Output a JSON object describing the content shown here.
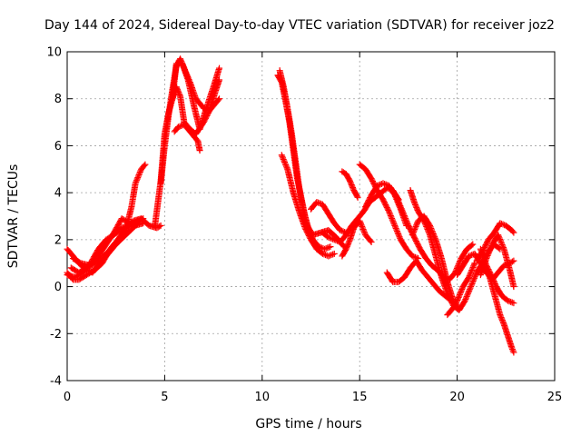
{
  "chart_data": {
    "type": "scatter",
    "title": "Day 144 of 2024, Sidereal Day-to-day VTEC variation (SDTVAR) for receiver joz2",
    "xlabel": "GPS time / hours",
    "ylabel": "SDTVAR / TECUs",
    "xlim": [
      0,
      25
    ],
    "ylim": [
      -4,
      10
    ],
    "x_ticks": [
      "0",
      "5",
      "10",
      "15",
      "20",
      "25"
    ],
    "y_ticks": [
      "-4",
      "-2",
      "0",
      "2",
      "4",
      "6",
      "8",
      "10"
    ],
    "x_tick_values": [
      0,
      5,
      10,
      15,
      20,
      25
    ],
    "y_tick_values": [
      -4,
      -2,
      0,
      2,
      4,
      6,
      8,
      10
    ],
    "grid": true,
    "marker": "+",
    "color": "#ff0000",
    "series": [
      {
        "x": [
          0.0,
          0.3,
          0.6,
          1.0,
          1.3,
          1.6,
          1.9,
          2.2,
          2.5,
          2.8,
          3.0,
          3.3,
          3.5,
          3.8,
          4.0
        ],
        "y": [
          1.6,
          1.3,
          1.0,
          0.7,
          0.6,
          0.9,
          1.2,
          1.5,
          1.8,
          2.1,
          2.4,
          3.4,
          4.4,
          5.0,
          5.2
        ]
      },
      {
        "x": [
          0.0,
          0.3,
          0.6,
          1.0,
          1.4,
          1.8,
          2.2,
          2.6,
          3.0,
          3.4,
          3.8,
          4.2,
          4.6,
          4.8
        ],
        "y": [
          0.6,
          0.3,
          0.3,
          0.5,
          0.7,
          1.0,
          1.6,
          2.0,
          2.5,
          2.8,
          2.9,
          2.6,
          2.5,
          2.6
        ]
      },
      {
        "x": [
          0.0,
          0.4,
          0.8,
          1.2,
          1.6,
          2.0,
          2.4,
          2.8,
          3.2,
          3.6,
          3.9
        ],
        "y": [
          0.5,
          0.4,
          0.6,
          1.0,
          1.6,
          2.0,
          2.2,
          2.5,
          2.6,
          2.8,
          2.9
        ]
      },
      {
        "x": [
          0.2,
          0.6,
          1.0,
          1.5,
          2.0,
          2.5,
          3.0,
          3.5,
          3.9
        ],
        "y": [
          0.8,
          0.6,
          0.8,
          1.0,
          1.4,
          1.8,
          2.2,
          2.6,
          2.7
        ]
      },
      {
        "x": [
          0.3,
          0.7,
          1.2,
          1.6,
          2.0,
          2.4,
          2.8,
          3.2
        ],
        "y": [
          1.2,
          1.0,
          0.9,
          1.3,
          1.8,
          2.3,
          2.9,
          2.7
        ]
      },
      {
        "x": [
          4.8,
          5.0,
          5.2,
          5.4,
          5.6,
          5.8,
          6.0,
          6.3,
          6.6,
          7.0,
          7.3,
          7.6,
          7.8
        ],
        "y": [
          4.4,
          6.0,
          7.3,
          8.4,
          9.4,
          9.7,
          9.3,
          8.7,
          8.0,
          7.6,
          7.5,
          8.3,
          8.8
        ]
      },
      {
        "x": [
          4.5,
          4.8,
          5.0,
          5.2,
          5.4,
          5.6,
          5.8,
          6.0,
          6.3,
          6.6,
          7.0,
          7.3,
          7.6,
          7.8
        ],
        "y": [
          2.6,
          4.5,
          6.5,
          7.4,
          8.0,
          8.5,
          8.1,
          7.0,
          6.7,
          6.5,
          7.0,
          7.5,
          7.8,
          8.0
        ]
      },
      {
        "x": [
          5.4,
          5.6,
          5.9,
          6.2,
          6.5,
          6.8,
          7.1,
          7.5,
          7.8
        ],
        "y": [
          8.0,
          9.5,
          9.5,
          8.8,
          7.7,
          6.7,
          7.5,
          8.5,
          9.3
        ]
      },
      {
        "x": [
          5.5,
          5.7,
          6.0,
          6.3,
          6.7,
          6.8
        ],
        "y": [
          6.6,
          6.8,
          6.9,
          6.6,
          6.2,
          5.8
        ]
      },
      {
        "x": [
          10.8,
          11.0,
          11.2,
          11.4,
          11.6,
          11.8,
          12.0,
          12.2,
          12.4,
          12.6,
          12.9,
          13.2,
          13.5
        ],
        "y": [
          9.0,
          8.7,
          7.9,
          7.0,
          5.8,
          4.6,
          3.8,
          3.0,
          2.4,
          2.0,
          1.7,
          1.6,
          1.7
        ]
      },
      {
        "x": [
          10.9,
          11.1,
          11.3,
          11.5,
          11.7,
          11.9,
          12.1,
          12.3,
          12.6,
          13.0,
          13.4,
          13.8,
          14.2
        ],
        "y": [
          9.2,
          8.5,
          7.6,
          6.6,
          5.4,
          4.2,
          3.3,
          2.6,
          2.2,
          2.3,
          2.4,
          2.1,
          1.7
        ]
      },
      {
        "x": [
          11.0,
          11.3,
          11.6,
          11.9,
          12.2,
          12.5,
          12.8,
          13.1,
          13.4,
          13.7
        ],
        "y": [
          5.6,
          5.0,
          4.0,
          3.2,
          2.5,
          2.0,
          1.6,
          1.4,
          1.3,
          1.4
        ]
      },
      {
        "x": [
          12.5,
          12.8,
          13.1,
          13.4,
          13.7,
          14.0,
          14.3
        ],
        "y": [
          3.3,
          3.6,
          3.5,
          3.1,
          2.7,
          2.4,
          2.3
        ]
      },
      {
        "x": [
          13.1,
          13.4,
          13.7,
          14.0,
          14.3,
          14.6,
          14.9,
          15.2,
          15.5,
          15.8,
          16.1,
          16.4,
          16.7,
          17.0
        ],
        "y": [
          2.3,
          2.1,
          2.0,
          1.9,
          2.2,
          2.6,
          2.9,
          3.2,
          3.6,
          3.8,
          4.0,
          4.2,
          4.1,
          3.7
        ]
      },
      {
        "x": [
          14.1,
          14.3,
          14.5,
          14.7,
          14.9
        ],
        "y": [
          4.9,
          4.8,
          4.5,
          4.1,
          3.8
        ]
      },
      {
        "x": [
          14.1,
          14.3,
          14.5,
          14.7,
          15.0,
          15.3,
          15.6
        ],
        "y": [
          1.3,
          1.6,
          2.0,
          2.5,
          2.8,
          2.2,
          1.9
        ]
      },
      {
        "x": [
          15.0,
          15.3,
          15.6,
          15.9,
          16.2,
          16.5,
          16.8,
          17.1,
          17.4,
          17.7,
          18.0
        ],
        "y": [
          5.2,
          5.0,
          4.6,
          4.1,
          3.7,
          3.2,
          2.6,
          2.0,
          1.6,
          1.3,
          1.2
        ]
      },
      {
        "x": [
          15.3,
          15.6,
          15.9,
          16.2,
          16.5,
          16.8,
          17.1,
          17.4
        ],
        "y": [
          3.4,
          3.9,
          4.3,
          4.4,
          4.3,
          3.9,
          3.3,
          2.6
        ]
      },
      {
        "x": [
          16.6,
          16.9,
          17.2,
          17.5,
          17.8,
          18.1,
          18.4,
          18.7,
          19.0,
          19.3,
          19.6,
          19.9,
          20.2,
          20.5,
          20.8
        ],
        "y": [
          4.2,
          3.8,
          3.2,
          2.6,
          2.1,
          1.6,
          1.2,
          0.9,
          0.7,
          0.4,
          0.3,
          0.6,
          1.2,
          1.6,
          1.8
        ]
      },
      {
        "x": [
          16.4,
          16.7,
          17.0,
          17.3,
          17.6,
          17.9,
          18.2,
          18.5,
          18.8,
          19.1,
          19.4,
          19.7,
          20.0
        ],
        "y": [
          0.6,
          0.2,
          0.2,
          0.4,
          0.8,
          1.1,
          0.7,
          0.4,
          0.1,
          -0.2,
          -0.4,
          -0.6,
          -0.8
        ]
      },
      {
        "x": [
          17.6,
          17.8,
          18.0,
          18.3,
          18.6,
          18.9,
          19.2,
          19.5,
          19.8,
          20.1,
          20.4,
          20.7,
          21.0,
          21.3,
          21.6,
          21.9,
          22.2
        ],
        "y": [
          4.1,
          3.6,
          3.2,
          2.8,
          2.2,
          1.3,
          0.4,
          -0.3,
          -0.8,
          -1.0,
          -0.6,
          0.0,
          0.6,
          1.0,
          1.5,
          1.8,
          1.6
        ]
      },
      {
        "x": [
          17.7,
          18.0,
          18.3,
          18.6,
          18.9,
          19.2,
          19.5,
          19.8
        ],
        "y": [
          2.2,
          2.8,
          3.0,
          2.6,
          2.0,
          1.2,
          0.2,
          -0.6
        ]
      },
      {
        "x": [
          19.5,
          19.7,
          19.9,
          20.1,
          20.3,
          20.6,
          20.9
        ],
        "y": [
          -1.2,
          -1.0,
          -0.8,
          -0.4,
          0.0,
          0.4,
          1.0
        ]
      },
      {
        "x": [
          20.0,
          20.3,
          20.6,
          20.9,
          21.2,
          21.5,
          21.8,
          22.1,
          22.4,
          22.7,
          22.9
        ],
        "y": [
          0.5,
          0.9,
          1.3,
          1.4,
          1.0,
          0.6,
          0.3,
          0.6,
          0.9,
          1.0,
          1.1
        ]
      },
      {
        "x": [
          21.0,
          21.3,
          21.6,
          21.9,
          22.2,
          22.5,
          22.8,
          22.9
        ],
        "y": [
          1.1,
          1.5,
          2.0,
          2.3,
          2.7,
          2.6,
          2.4,
          2.3
        ]
      },
      {
        "x": [
          21.2,
          21.5,
          21.8,
          22.1,
          22.4,
          22.7,
          22.9
        ],
        "y": [
          0.5,
          1.2,
          1.8,
          2.2,
          1.6,
          0.7,
          0.0
        ]
      },
      {
        "x": [
          21.6,
          21.8,
          22.0,
          22.2,
          22.4,
          22.6,
          22.8,
          22.9
        ],
        "y": [
          0.6,
          0.0,
          -0.6,
          -1.2,
          -1.6,
          -2.1,
          -2.6,
          -2.8
        ]
      },
      {
        "x": [
          21.2,
          21.5,
          21.8,
          22.0,
          22.3,
          22.6,
          22.9
        ],
        "y": [
          1.6,
          0.9,
          0.4,
          0.0,
          -0.4,
          -0.6,
          -0.7
        ]
      }
    ]
  }
}
